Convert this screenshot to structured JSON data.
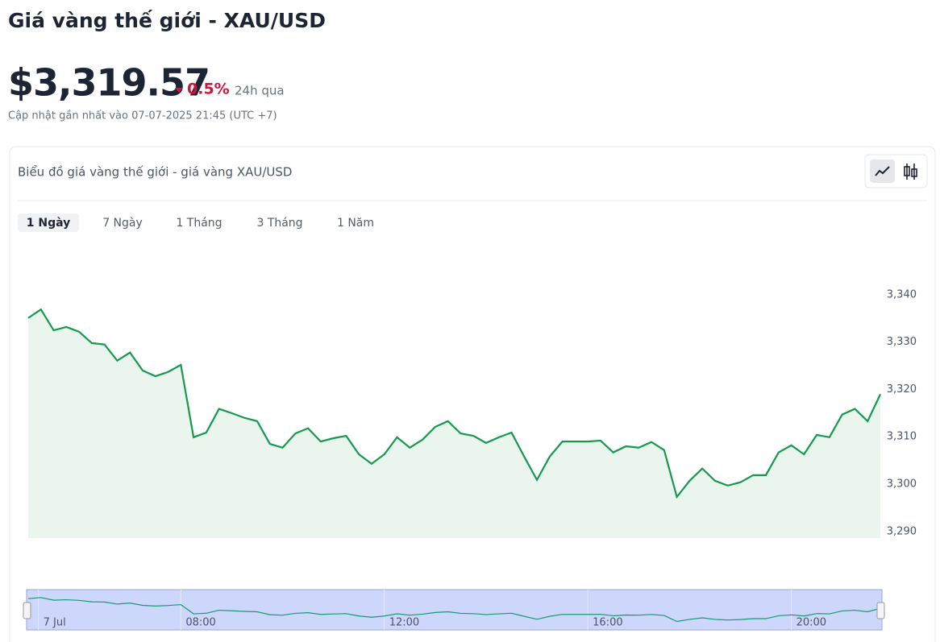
{
  "header": {
    "title": "Giá vàng thế giới - XAU/USD",
    "price": "$3,319.57",
    "change": "0.5%",
    "change_period": "24h qua",
    "updated": "Cập nhật gần nhất vào 07-07-2025 21:45 (UTC +7)"
  },
  "card": {
    "title": "Biểu đồ giá vàng thế giới - giá vàng XAU/USD",
    "tabs": [
      "1 Ngày",
      "7 Ngày",
      "1 Tháng",
      "3 Tháng",
      "1 Năm"
    ]
  },
  "chart_data": {
    "type": "area",
    "color": "#15994e",
    "fill": "#eaf5ee",
    "x": [
      5,
      5.25,
      5.5,
      5.75,
      6,
      6.25,
      6.5,
      6.75,
      7,
      7.25,
      7.5,
      7.75,
      8,
      8.25,
      8.5,
      8.75,
      9,
      9.25,
      9.5,
      9.75,
      10,
      10.25,
      10.5,
      10.75,
      11,
      11.25,
      11.5,
      11.75,
      12,
      12.25,
      12.5,
      12.75,
      13,
      13.25,
      13.5,
      13.75,
      14,
      14.25,
      14.5,
      14.75,
      15,
      15.25,
      15.5,
      15.75,
      16,
      16.25,
      16.5,
      16.75,
      17,
      17.25,
      17.5,
      17.75,
      18,
      18.25,
      18.5,
      18.75,
      19,
      19.25,
      19.5,
      19.75,
      20,
      20.25,
      20.5,
      20.75,
      21,
      21.25,
      21.5,
      21.75
    ],
    "values": [
      3335.1,
      3336.9,
      3332.5,
      3333.2,
      3332.2,
      3329.8,
      3329.5,
      3326.1,
      3327.8,
      3324.0,
      3322.8,
      3323.7,
      3325.2,
      3309.9,
      3310.9,
      3315.9,
      3315.0,
      3314.0,
      3313.3,
      3308.5,
      3307.7,
      3310.7,
      3311.8,
      3309.0,
      3309.7,
      3310.2,
      3306.3,
      3304.3,
      3306.3,
      3309.9,
      3307.7,
      3309.4,
      3312.1,
      3313.3,
      3310.7,
      3310.2,
      3308.7,
      3309.9,
      3310.9,
      3305.8,
      3300.9,
      3305.8,
      3309.0,
      3309.0,
      3309.0,
      3309.2,
      3306.7,
      3308.0,
      3307.7,
      3308.9,
      3307.2,
      3297.3,
      3300.7,
      3303.3,
      3300.7,
      3299.7,
      3300.4,
      3301.9,
      3301.9,
      3306.7,
      3308.2,
      3306.3,
      3310.4,
      3309.9,
      3314.7,
      3315.9,
      3313.3,
      3319.0
    ],
    "xlim": [
      5,
      21.75
    ],
    "ylim": [
      3288.6,
      3350
    ],
    "yticks": [
      {
        "value": 3290,
        "label": "3,290"
      },
      {
        "value": 3300,
        "label": "3,300"
      },
      {
        "value": 3310,
        "label": "3,310"
      },
      {
        "value": 3320,
        "label": "3,320"
      },
      {
        "value": 3330,
        "label": "3,330"
      },
      {
        "value": 3340,
        "label": "3,340"
      }
    ],
    "xticks": [
      {
        "value": 5.2,
        "label": "7 Jul"
      },
      {
        "value": 8,
        "label": "08:00"
      },
      {
        "value": 12,
        "label": "12:00"
      },
      {
        "value": 16,
        "label": "16:00"
      },
      {
        "value": 20,
        "label": "20:00"
      }
    ]
  }
}
